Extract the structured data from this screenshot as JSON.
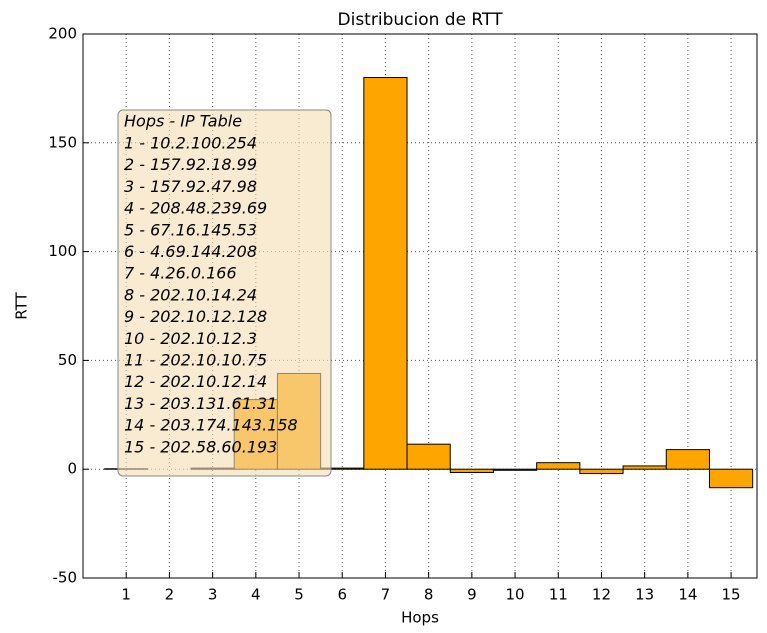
{
  "chart_data": {
    "type": "bar",
    "title": "Distribucion de RTT",
    "x_label": "Hops",
    "y_label": "RTT",
    "x": [
      1,
      2,
      3,
      4,
      5,
      6,
      7,
      8,
      9,
      10,
      11,
      12,
      13,
      14,
      15
    ],
    "values": [
      0.2,
      0,
      0.5,
      32,
      44,
      0.5,
      180,
      11.5,
      -1.5,
      -0.5,
      3,
      -2,
      1.5,
      9,
      -8.5
    ],
    "color": "#ffa500",
    "xlim": [
      0,
      15.6
    ],
    "xticks": [
      1,
      2,
      3,
      4,
      5,
      6,
      7,
      8,
      9,
      10,
      11,
      12,
      13,
      14,
      15
    ],
    "ylim": [
      -50,
      200
    ],
    "yticks": [
      -50,
      0,
      50,
      100,
      150,
      200
    ],
    "grid": true,
    "annotation": {
      "title": "Hops - IP Table",
      "lines": [
        "1 - 10.2.100.254",
        "2 - 157.92.18.99",
        "3 - 157.92.47.98",
        "4 - 208.48.239.69",
        "5 - 67.16.145.53",
        "6 - 4.69.144.208",
        "7 - 4.26.0.166",
        "8 - 202.10.14.24",
        "9 - 202.10.12.128",
        "10 - 202.10.12.3",
        "11 - 202.10.10.75",
        "12 - 202.10.12.14",
        "13 - 203.131.61.31",
        "14 - 203.174.143.158",
        "15 - 202.58.60.193"
      ]
    }
  }
}
